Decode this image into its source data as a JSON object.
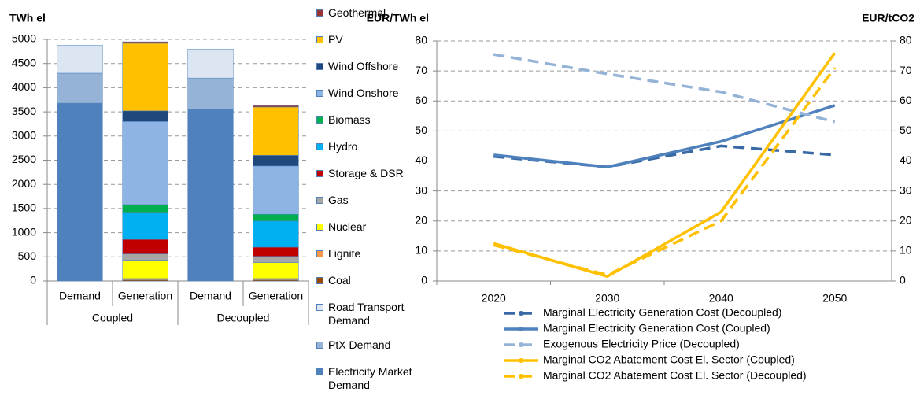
{
  "chart_data": [
    {
      "type": "stacked_bar",
      "ylabel": "TWh el",
      "categories": [
        "Demand",
        "Generation",
        "Demand",
        "Generation"
      ],
      "group_labels": [
        "Coupled",
        "Decoupled"
      ],
      "ylim": [
        0,
        5000
      ],
      "yticks": [
        0,
        500,
        1000,
        1500,
        2000,
        2500,
        3000,
        3500,
        4000,
        4500,
        5000
      ],
      "grid": true,
      "series": [
        {
          "name": "Geothermal",
          "color": "#953735",
          "values": [
            null,
            30,
            null,
            30
          ]
        },
        {
          "name": "PV",
          "color": "#ffc000",
          "values": [
            null,
            1400,
            null,
            1000
          ]
        },
        {
          "name": "Wind Offshore",
          "color": "#1f497d",
          "values": [
            null,
            220,
            null,
            220
          ]
        },
        {
          "name": "Wind Onshore",
          "color": "#8eb4e3",
          "values": [
            null,
            1720,
            null,
            1000
          ]
        },
        {
          "name": "Biomass",
          "color": "#00b050",
          "values": [
            null,
            160,
            null,
            140
          ]
        },
        {
          "name": "Hydro",
          "color": "#00b0f0",
          "values": [
            null,
            560,
            null,
            540
          ]
        },
        {
          "name": "Storage & DSR",
          "color": "#c00000",
          "values": [
            null,
            300,
            null,
            190
          ]
        },
        {
          "name": "Gas",
          "color": "#a6a6a6",
          "values": [
            null,
            130,
            null,
            130
          ]
        },
        {
          "name": "Nuclear",
          "color": "#ffff00",
          "values": [
            null,
            380,
            null,
            330
          ]
        },
        {
          "name": "Lignite",
          "color": "#f79646",
          "values": [
            null,
            30,
            null,
            30
          ]
        },
        {
          "name": "Coal",
          "color": "#984807",
          "values": [
            null,
            20,
            null,
            20
          ]
        },
        {
          "name": "Road Transport Demand",
          "color": "#dce6f2",
          "values": [
            580,
            null,
            600,
            null
          ]
        },
        {
          "name": "PtX Demand",
          "color": "#95b3d7",
          "values": [
            620,
            null,
            640,
            null
          ]
        },
        {
          "name": "Electricity Market Demand",
          "color": "#4f81bd",
          "values": [
            3680,
            null,
            3560,
            null
          ]
        }
      ]
    },
    {
      "type": "line",
      "ylabel": "EUR/TWh el",
      "y2label": "EUR/tCO2",
      "categories": [
        "2020",
        "2030",
        "2040",
        "2050"
      ],
      "ylim": [
        0,
        80
      ],
      "yticks": [
        0,
        10,
        20,
        30,
        40,
        50,
        60,
        70,
        80
      ],
      "y2lim": [
        0,
        80
      ],
      "y2ticks": [
        0,
        10,
        20,
        30,
        40,
        50,
        60,
        70,
        80
      ],
      "grid": true,
      "series": [
        {
          "name": "Marginal Electricity Generation Cost (Decoupled)",
          "color": "#3a6aa5",
          "dashed": true,
          "values": [
            41.5,
            38,
            45,
            42
          ]
        },
        {
          "name": "Marginal Electricity Generation Cost (Coupled)",
          "color": "#4f81bd",
          "dashed": false,
          "values": [
            42,
            38,
            46.5,
            58.5
          ]
        },
        {
          "name": "Exogenous Electricity Price (Decoupled)",
          "color": "#95b3d7",
          "dashed": true,
          "values": [
            75.5,
            69,
            63,
            53
          ]
        },
        {
          "name": "Marginal CO2 Abatement Cost El. Sector (Coupled)",
          "color": "#ffc000",
          "dashed": false,
          "axis": "y2",
          "values": [
            12.5,
            1.5,
            23,
            76
          ]
        },
        {
          "name": "Marginal CO2 Abatement Cost El. Sector (Decoupled)",
          "color": "#ffc000",
          "dashed": true,
          "axis": "y2",
          "values": [
            12,
            2,
            20,
            71
          ]
        }
      ]
    }
  ]
}
